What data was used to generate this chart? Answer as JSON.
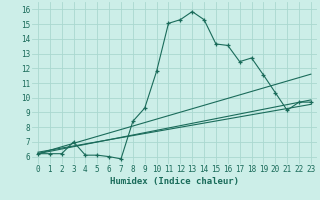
{
  "xlabel": "Humidex (Indice chaleur)",
  "bg_color": "#cceee8",
  "line_color": "#1a6b5a",
  "grid_color": "#aad8d0",
  "xlim": [
    -0.5,
    23.5
  ],
  "ylim": [
    5.5,
    16.5
  ],
  "xticks": [
    0,
    1,
    2,
    3,
    4,
    5,
    6,
    7,
    8,
    9,
    10,
    11,
    12,
    13,
    14,
    15,
    16,
    17,
    18,
    19,
    20,
    21,
    22,
    23
  ],
  "yticks": [
    6,
    7,
    8,
    9,
    10,
    11,
    12,
    13,
    14,
    15,
    16
  ],
  "line1_x": [
    0,
    1,
    2,
    3,
    4,
    5,
    6,
    7,
    8,
    9,
    10,
    11,
    12,
    13,
    14,
    15,
    16,
    17,
    18,
    19,
    20,
    21,
    22,
    23
  ],
  "line1_y": [
    6.2,
    6.2,
    6.2,
    7.0,
    6.1,
    6.1,
    6.0,
    5.85,
    8.4,
    9.3,
    11.8,
    15.05,
    15.3,
    15.85,
    15.3,
    13.65,
    13.55,
    12.45,
    12.7,
    11.55,
    10.35,
    9.15,
    9.7,
    9.7
  ],
  "line2_x": [
    0,
    23
  ],
  "line2_y": [
    6.2,
    11.6
  ],
  "line3_x": [
    0,
    23
  ],
  "line3_y": [
    6.2,
    9.85
  ],
  "line4_x": [
    0,
    23
  ],
  "line4_y": [
    6.3,
    9.55
  ]
}
